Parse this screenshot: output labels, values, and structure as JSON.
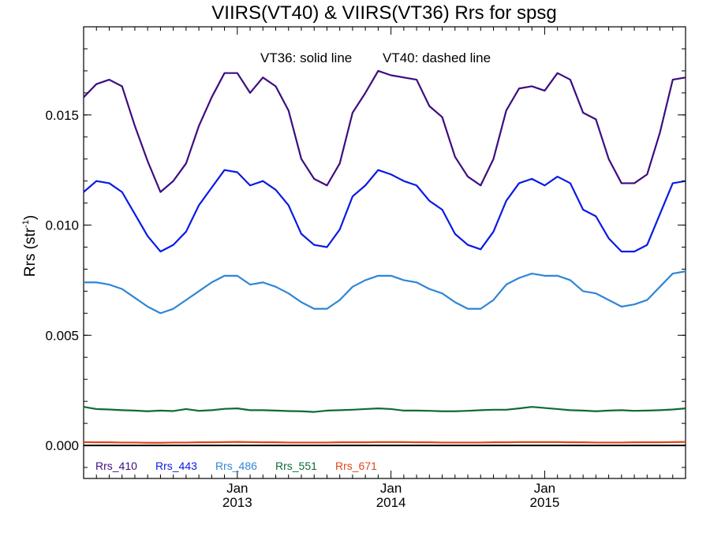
{
  "chart_data": {
    "type": "line",
    "title": "VIIRS(VT40) & VIIRS(VT36)  Rrs for spsg",
    "annotation": {
      "solid": "VT36: solid line",
      "dashed": "VT40: dashed line"
    },
    "xlabel": "",
    "ylabel": "Rrs (str",
    "ylabel_sup": "-1",
    "ylabel_close": ")",
    "xlim": [
      "2012-01",
      "2015-12"
    ],
    "ylim": [
      -0.0015,
      0.019
    ],
    "x_ticks": [
      {
        "pos": "2013-01",
        "month": "Jan",
        "year": "2013"
      },
      {
        "pos": "2014-01",
        "month": "Jan",
        "year": "2014"
      },
      {
        "pos": "2015-01",
        "month": "Jan",
        "year": "2015"
      }
    ],
    "y_ticks": [
      {
        "value": 0.0,
        "label": "0.000"
      },
      {
        "value": 0.005,
        "label": "0.005"
      },
      {
        "value": 0.01,
        "label": "0.010"
      },
      {
        "value": 0.015,
        "label": "0.015"
      }
    ],
    "x": [
      "2012-01",
      "2012-02",
      "2012-03",
      "2012-04",
      "2012-05",
      "2012-06",
      "2012-07",
      "2012-08",
      "2012-09",
      "2012-10",
      "2012-11",
      "2012-12",
      "2013-01",
      "2013-02",
      "2013-03",
      "2013-04",
      "2013-05",
      "2013-06",
      "2013-07",
      "2013-08",
      "2013-09",
      "2013-10",
      "2013-11",
      "2013-12",
      "2014-01",
      "2014-02",
      "2014-03",
      "2014-04",
      "2014-05",
      "2014-06",
      "2014-07",
      "2014-08",
      "2014-09",
      "2014-10",
      "2014-11",
      "2014-12",
      "2015-01",
      "2015-02",
      "2015-03",
      "2015-04",
      "2015-05",
      "2015-06",
      "2015-07",
      "2015-08",
      "2015-09",
      "2015-10",
      "2015-11",
      "2015-12"
    ],
    "series": [
      {
        "name": "Rrs_410",
        "color": "#3d0d80",
        "values": [
          0.0158,
          0.0164,
          0.0166,
          0.0163,
          0.0145,
          0.0129,
          0.0115,
          0.012,
          0.0128,
          0.0145,
          0.0158,
          0.0169,
          0.0169,
          0.016,
          0.0167,
          0.0163,
          0.0152,
          0.013,
          0.0121,
          0.0118,
          0.0128,
          0.0151,
          0.016,
          0.017,
          0.0168,
          0.0167,
          0.0166,
          0.0154,
          0.0149,
          0.0131,
          0.0122,
          0.0118,
          0.013,
          0.0152,
          0.0162,
          0.0163,
          0.0161,
          0.0169,
          0.0166,
          0.0151,
          0.0148,
          0.013,
          0.0119,
          0.0119,
          0.0123,
          0.0142,
          0.0166,
          0.0167
        ]
      },
      {
        "name": "Rrs_443",
        "color": "#0a1ae6",
        "values": [
          0.0115,
          0.012,
          0.0119,
          0.0115,
          0.0105,
          0.0095,
          0.0088,
          0.0091,
          0.0097,
          0.0109,
          0.0117,
          0.0125,
          0.0124,
          0.0118,
          0.012,
          0.0116,
          0.0109,
          0.0096,
          0.0091,
          0.009,
          0.0098,
          0.0113,
          0.0118,
          0.0125,
          0.0123,
          0.012,
          0.0118,
          0.0111,
          0.0107,
          0.0096,
          0.0091,
          0.0089,
          0.0097,
          0.0111,
          0.0119,
          0.0121,
          0.0118,
          0.0122,
          0.0119,
          0.0107,
          0.0104,
          0.0094,
          0.0088,
          0.0088,
          0.0091,
          0.0105,
          0.0119,
          0.012
        ]
      },
      {
        "name": "Rrs_486",
        "color": "#2f86d6",
        "values": [
          0.0074,
          0.0074,
          0.0073,
          0.0071,
          0.0067,
          0.0063,
          0.006,
          0.0062,
          0.0066,
          0.007,
          0.0074,
          0.0077,
          0.0077,
          0.0073,
          0.0074,
          0.0072,
          0.0069,
          0.0065,
          0.0062,
          0.0062,
          0.0066,
          0.0072,
          0.0075,
          0.0077,
          0.0077,
          0.0075,
          0.0074,
          0.0071,
          0.0069,
          0.0065,
          0.0062,
          0.0062,
          0.0066,
          0.0073,
          0.0076,
          0.0078,
          0.0077,
          0.0077,
          0.0075,
          0.007,
          0.0069,
          0.0066,
          0.0063,
          0.0064,
          0.0066,
          0.0072,
          0.0078,
          0.0079
        ]
      },
      {
        "name": "Rrs_551",
        "color": "#0e6b34",
        "values": [
          0.00175,
          0.00165,
          0.00163,
          0.0016,
          0.00158,
          0.00155,
          0.00158,
          0.00156,
          0.00165,
          0.00157,
          0.0016,
          0.00166,
          0.00168,
          0.0016,
          0.0016,
          0.00158,
          0.00156,
          0.00155,
          0.00152,
          0.00158,
          0.0016,
          0.00162,
          0.00165,
          0.00168,
          0.00165,
          0.00158,
          0.00158,
          0.00157,
          0.00155,
          0.00155,
          0.00157,
          0.0016,
          0.00162,
          0.00162,
          0.00168,
          0.00175,
          0.0017,
          0.00165,
          0.0016,
          0.00158,
          0.00155,
          0.00158,
          0.0016,
          0.00157,
          0.00158,
          0.0016,
          0.00163,
          0.00168
        ]
      },
      {
        "name": "Rrs_671",
        "color": "#e0461a",
        "values": [
          0.00015,
          0.00014,
          0.00014,
          0.00013,
          0.00013,
          0.00012,
          0.00012,
          0.00013,
          0.00013,
          0.00014,
          0.00014,
          0.00015,
          0.00016,
          0.00015,
          0.00014,
          0.00014,
          0.00013,
          0.00013,
          0.00013,
          0.00013,
          0.00014,
          0.00014,
          0.00014,
          0.00015,
          0.00015,
          0.00015,
          0.00014,
          0.00014,
          0.00013,
          0.00013,
          0.00013,
          0.00013,
          0.00014,
          0.00014,
          0.00015,
          0.00015,
          0.00015,
          0.00015,
          0.00014,
          0.00014,
          0.00013,
          0.00013,
          0.00013,
          0.00014,
          0.00014,
          0.00014,
          0.00015,
          0.00016
        ]
      }
    ],
    "zero_line_color": "#000000",
    "grid": false,
    "legend_position": "bottom-left"
  }
}
